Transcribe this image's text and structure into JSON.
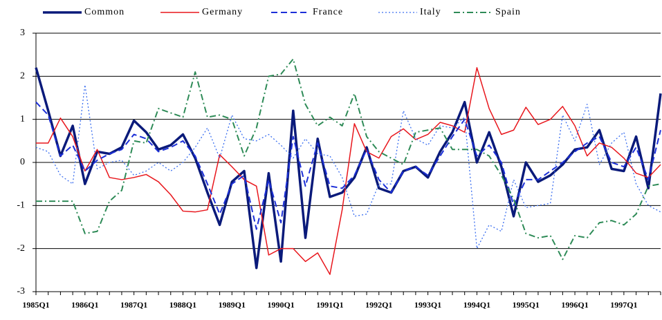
{
  "chart_data": {
    "type": "line",
    "categories": [
      "1985Q1",
      null,
      null,
      null,
      "1986Q1",
      null,
      null,
      null,
      "1987Q1",
      null,
      null,
      null,
      "1988Q1",
      null,
      null,
      null,
      "1989Q1",
      null,
      null,
      null,
      "1990Q1",
      null,
      null,
      null,
      "1991Q1",
      null,
      null,
      null,
      "1992Q1",
      null,
      null,
      null,
      "1993Q1",
      null,
      null,
      null,
      "1994Q1",
      null,
      null,
      null,
      "1995Q1",
      null,
      null,
      null,
      "1996Q1",
      null,
      null,
      null,
      "1997Q1",
      null,
      null,
      null
    ],
    "ylim": [
      -3,
      3
    ],
    "yticks": [
      -3,
      -2,
      -1,
      0,
      1,
      2,
      3
    ],
    "grid": true,
    "legend": "top",
    "series": [
      {
        "name": "Common",
        "color": "#0a1a7a",
        "style": "thick",
        "values": [
          2.2,
          1.2,
          0.15,
          0.85,
          -0.5,
          0.25,
          0.2,
          0.35,
          0.97,
          0.7,
          0.3,
          0.4,
          0.65,
          0.1,
          -0.7,
          -1.45,
          -0.45,
          -0.2,
          -2.45,
          -0.25,
          -2.3,
          1.2,
          -1.75,
          0.55,
          -0.8,
          -0.7,
          -0.35,
          0.35,
          -0.6,
          -0.7,
          -0.2,
          -0.1,
          -0.35,
          0.25,
          0.7,
          1.4,
          0.0,
          0.7,
          -0.1,
          -1.25,
          0.0,
          -0.45,
          -0.3,
          -0.05,
          0.3,
          0.35,
          0.75,
          -0.15,
          -0.2,
          0.6,
          -0.6,
          1.6
        ]
      },
      {
        "name": "Germany",
        "color": "#e8161c",
        "style": "solid",
        "values": [
          0.45,
          0.45,
          1.03,
          0.6,
          -0.2,
          0.3,
          -0.35,
          -0.4,
          -0.35,
          -0.28,
          -0.45,
          -0.75,
          -1.13,
          -1.15,
          -1.1,
          0.18,
          -0.1,
          -0.4,
          -0.55,
          -2.15,
          -2.0,
          -2.0,
          -2.3,
          -2.1,
          -2.6,
          -1.1,
          0.9,
          0.25,
          0.1,
          0.6,
          0.78,
          0.53,
          0.65,
          0.93,
          0.85,
          0.7,
          2.2,
          1.25,
          0.65,
          0.75,
          1.28,
          0.88,
          1.0,
          1.3,
          0.85,
          0.15,
          0.45,
          0.35,
          0.1,
          -0.25,
          -0.35,
          -0.05
        ]
      },
      {
        "name": "France",
        "color": "#1c2fd8",
        "style": "dash",
        "values": [
          1.4,
          1.1,
          0.15,
          0.4,
          -0.2,
          0.05,
          0.2,
          0.3,
          0.65,
          0.55,
          0.25,
          0.35,
          0.5,
          0.15,
          -0.5,
          -1.2,
          -0.5,
          -0.3,
          -1.55,
          -0.4,
          -1.4,
          0.6,
          -0.55,
          0.45,
          -0.55,
          -0.6,
          -0.3,
          0.3,
          -0.4,
          -0.7,
          -0.2,
          -0.1,
          -0.3,
          0.15,
          0.6,
          1.0,
          0.15,
          0.4,
          0.0,
          -1.0,
          -0.4,
          -0.4,
          -0.2,
          0.0,
          0.25,
          0.45,
          0.6,
          0.0,
          -0.1,
          0.35,
          -0.4,
          0.75
        ]
      },
      {
        "name": "Italy",
        "color": "#3a6ef0",
        "style": "dot",
        "values": [
          0.35,
          0.25,
          -0.3,
          -0.5,
          1.8,
          -0.15,
          0.0,
          0.05,
          -0.3,
          -0.2,
          0.0,
          -0.2,
          0.0,
          0.35,
          0.8,
          0.1,
          1.1,
          0.55,
          0.5,
          0.65,
          0.4,
          0.1,
          0.55,
          0.2,
          0.15,
          -0.35,
          -1.25,
          -1.2,
          -0.5,
          -0.5,
          1.2,
          0.55,
          0.4,
          0.85,
          0.8,
          1.05,
          -2.0,
          -1.45,
          -1.6,
          -0.4,
          -1.05,
          -1.0,
          -0.95,
          1.1,
          0.5,
          1.35,
          -0.05,
          0.45,
          0.7,
          -0.5,
          -1.0,
          -1.15
        ]
      },
      {
        "name": "Spain",
        "color": "#2e8b57",
        "style": "dashdot",
        "values": [
          -0.9,
          -0.9,
          -0.9,
          -0.9,
          -1.65,
          -1.6,
          -0.9,
          -0.65,
          0.5,
          0.45,
          1.25,
          1.15,
          1.05,
          2.1,
          1.05,
          1.1,
          1.0,
          0.15,
          0.8,
          2.0,
          2.05,
          2.4,
          1.35,
          0.85,
          1.05,
          0.85,
          1.6,
          0.6,
          0.25,
          0.1,
          -0.05,
          0.7,
          0.75,
          0.8,
          0.3,
          0.3,
          0.3,
          0.15,
          -0.3,
          -0.85,
          -1.65,
          -1.75,
          -1.7,
          -2.25,
          -1.7,
          -1.75,
          -1.4,
          -1.35,
          -1.45,
          -1.2,
          -0.55,
          -0.5
        ]
      }
    ]
  }
}
